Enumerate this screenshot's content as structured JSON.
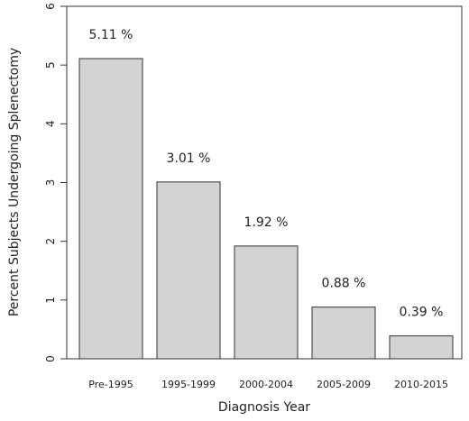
{
  "chart_data": {
    "type": "bar",
    "title": "",
    "xlabel": "Diagnosis Year",
    "ylabel": "Percent Subjects Undergoing Splenectomy",
    "ylim": [
      0,
      6
    ],
    "yticks": [
      0,
      1,
      2,
      3,
      4,
      5,
      6
    ],
    "categories": [
      "Pre-1995",
      "1995-1999",
      "2000-2004",
      "2005-2009",
      "2010-2015"
    ],
    "values": [
      5.11,
      3.01,
      1.92,
      0.88,
      0.39
    ],
    "data_labels": [
      "5.11 %",
      "3.01 %",
      "1.92 %",
      "0.88 %",
      "0.39 %"
    ],
    "grid": false,
    "bar_color": "#d3d3d3",
    "edge_color": "#333333"
  }
}
